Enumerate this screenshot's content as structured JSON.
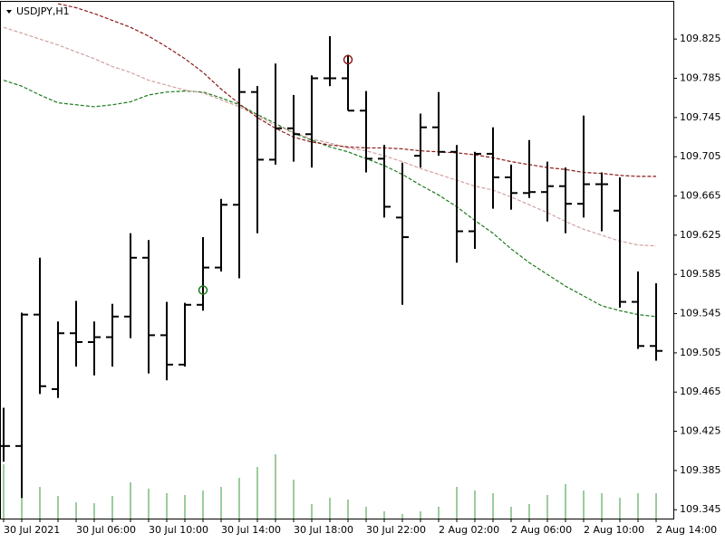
{
  "chart_data": {
    "type": "ohlc",
    "title": "USDJPY,H1",
    "categories": [
      "30 Jul 2021",
      null,
      null,
      null,
      "30 Jul 06:00",
      null,
      null,
      null,
      "30 Jul 10:00",
      null,
      null,
      null,
      "30 Jul 14:00",
      null,
      null,
      null,
      "30 Jul 18:00",
      null,
      null,
      null,
      "30 Jul 22:00",
      null,
      null,
      null,
      "2 Aug 02:00",
      null,
      null,
      null,
      "2 Aug 06:00",
      null,
      null,
      null,
      "2 Aug 10:00",
      null,
      null,
      null,
      "2 Aug 14:00"
    ],
    "open": [
      109.41,
      109.41,
      109.544,
      109.468,
      109.525,
      109.516,
      109.521,
      109.542,
      109.602,
      109.523,
      109.493,
      109.554,
      109.592,
      109.656,
      109.771,
      109.702,
      109.734,
      109.728,
      109.785,
      109.785,
      109.752,
      109.703,
      109.643,
      109.706,
      109.735,
      109.71,
      109.629,
      109.708,
      109.684,
      109.668,
      109.669,
      109.675,
      109.657,
      109.677,
      109.65,
      109.557,
      109.512
    ],
    "high": [
      109.449,
      109.546,
      109.602,
      109.537,
      109.558,
      109.537,
      109.555,
      109.627,
      109.62,
      109.557,
      109.556,
      109.623,
      109.662,
      109.795,
      109.777,
      109.8,
      109.768,
      109.788,
      109.828,
      109.809,
      109.772,
      109.717,
      109.699,
      109.749,
      109.771,
      109.717,
      109.71,
      109.735,
      109.697,
      109.722,
      109.7,
      109.694,
      109.747,
      109.689,
      109.684,
      109.588,
      109.576
    ],
    "low": [
      109.394,
      109.357,
      109.463,
      109.459,
      109.491,
      109.482,
      109.491,
      109.52,
      109.484,
      109.477,
      109.491,
      109.548,
      109.588,
      109.581,
      109.627,
      109.697,
      109.7,
      109.694,
      109.777,
      109.752,
      109.689,
      109.643,
      109.554,
      109.694,
      109.706,
      109.597,
      109.611,
      109.652,
      109.651,
      109.663,
      109.639,
      109.627,
      109.643,
      109.629,
      109.551,
      109.509,
      109.497
    ],
    "close": [
      109.41,
      109.544,
      109.471,
      109.525,
      109.516,
      109.521,
      109.542,
      109.602,
      109.523,
      109.493,
      109.554,
      109.592,
      109.656,
      109.771,
      109.702,
      109.734,
      109.728,
      109.785,
      109.785,
      109.752,
      109.703,
      109.654,
      109.623,
      109.735,
      109.71,
      109.629,
      109.708,
      109.684,
      109.668,
      109.669,
      109.675,
      109.657,
      109.677,
      109.677,
      109.557,
      109.512,
      109.507
    ],
    "volume": [
      60,
      53,
      35,
      25,
      18,
      17,
      25,
      40,
      33,
      28,
      26,
      31,
      35,
      45,
      57,
      71,
      43,
      16,
      23,
      21,
      13,
      8,
      5,
      8,
      13,
      35,
      31,
      28,
      13,
      16,
      26,
      38,
      31,
      28,
      23,
      28,
      28
    ],
    "bar_color": "#000000",
    "volume_color": "#3a9a3a",
    "series": [
      {
        "color": "#1a7a1a",
        "values": [
          109.783,
          109.777,
          109.768,
          109.76,
          109.758,
          109.756,
          109.758,
          109.761,
          109.768,
          109.771,
          109.772,
          109.771,
          109.765,
          109.758,
          109.748,
          109.739,
          109.729,
          109.722,
          109.715,
          109.71,
          109.703,
          109.696,
          109.687,
          109.676,
          109.666,
          109.654,
          109.64,
          109.627,
          109.611,
          109.597,
          109.585,
          109.573,
          109.563,
          109.553,
          109.548,
          109.544,
          109.542
        ]
      },
      {
        "color": "#d4a0a0",
        "values": [
          109.837,
          109.831,
          109.825,
          109.819,
          109.812,
          109.805,
          109.797,
          109.791,
          109.783,
          109.778,
          109.773,
          109.77,
          109.763,
          109.756,
          109.747,
          109.737,
          109.73,
          109.723,
          109.719,
          109.714,
          109.711,
          109.706,
          109.7,
          109.693,
          109.687,
          109.681,
          109.675,
          109.671,
          109.664,
          109.656,
          109.648,
          109.639,
          109.631,
          109.625,
          109.619,
          109.615,
          109.614
        ]
      },
      {
        "color": "#8b1a1a",
        "values": [
          null,
          null,
          null,
          109.861,
          109.857,
          109.851,
          109.844,
          109.837,
          109.828,
          109.817,
          109.805,
          109.791,
          109.774,
          109.759,
          109.745,
          109.734,
          109.725,
          109.72,
          109.717,
          109.715,
          109.714,
          109.714,
          109.713,
          109.711,
          109.71,
          109.709,
          109.707,
          109.704,
          109.7,
          109.697,
          109.694,
          109.692,
          109.689,
          109.688,
          109.686,
          109.685,
          109.685
        ]
      }
    ],
    "buy_values": [
      null,
      null,
      null,
      null,
      null,
      null,
      null,
      null,
      null,
      null,
      null,
      109.569,
      null,
      null,
      null,
      null,
      null,
      null,
      null,
      null,
      null,
      null,
      null,
      null,
      null,
      null,
      null,
      null,
      null,
      null,
      null,
      null,
      null,
      null,
      null,
      null,
      null
    ],
    "sell_values": [
      null,
      null,
      null,
      null,
      null,
      null,
      null,
      null,
      null,
      null,
      null,
      null,
      null,
      null,
      null,
      null,
      null,
      null,
      null,
      109.804,
      null,
      null,
      null,
      null,
      null,
      null,
      null,
      null,
      null,
      null,
      null,
      null,
      null,
      null,
      null,
      null,
      null
    ],
    "buy_color": "#1a7a1a",
    "sell_color": "#8b1a1a",
    "ylim": [
      109.336,
      109.863
    ],
    "yticks": [
      109.825,
      109.785,
      109.745,
      109.705,
      109.665,
      109.625,
      109.585,
      109.545,
      109.505,
      109.465,
      109.425,
      109.385,
      109.345
    ]
  }
}
